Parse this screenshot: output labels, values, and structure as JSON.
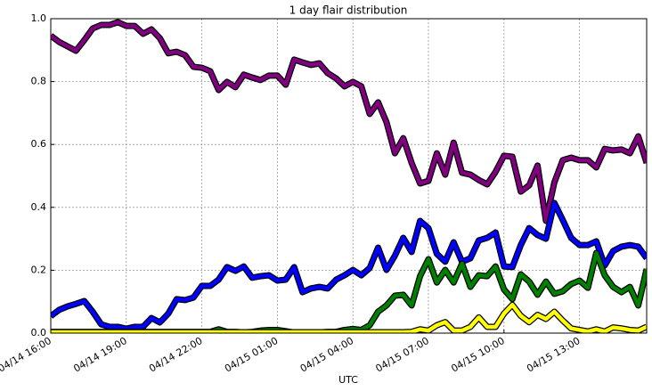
{
  "chart_data": {
    "type": "line",
    "title": "1 day flair distribution",
    "xlabel": "UTC",
    "x": [
      "04/14 16:00",
      "04/14 16:20",
      "04/14 16:40",
      "04/14 17:00",
      "04/14 17:20",
      "04/14 17:40",
      "04/14 18:00",
      "04/14 18:20",
      "04/14 18:40",
      "04/14 19:00",
      "04/14 19:20",
      "04/14 19:40",
      "04/14 20:00",
      "04/14 20:20",
      "04/14 20:40",
      "04/14 21:00",
      "04/14 21:20",
      "04/14 21:40",
      "04/14 22:00",
      "04/14 22:20",
      "04/14 22:40",
      "04/14 23:00",
      "04/14 23:20",
      "04/14 23:40",
      "04/15 00:00",
      "04/15 00:20",
      "04/15 00:40",
      "04/15 01:00",
      "04/15 01:20",
      "04/15 01:40",
      "04/15 02:00",
      "04/15 02:20",
      "04/15 02:40",
      "04/15 03:00",
      "04/15 03:20",
      "04/15 03:40",
      "04/15 04:00",
      "04/15 04:20",
      "04/15 04:40",
      "04/15 05:00",
      "04/15 05:20",
      "04/15 05:40",
      "04/15 06:00",
      "04/15 06:20",
      "04/15 06:40",
      "04/15 07:00",
      "04/15 07:20",
      "04/15 07:40",
      "04/15 08:00",
      "04/15 08:20",
      "04/15 08:40",
      "04/15 09:00",
      "04/15 09:20",
      "04/15 09:40",
      "04/15 10:00",
      "04/15 10:20",
      "04/15 10:40",
      "04/15 11:00",
      "04/15 11:20",
      "04/15 11:40",
      "04/15 12:00",
      "04/15 12:20",
      "04/15 12:40",
      "04/15 13:00",
      "04/15 13:20",
      "04/15 13:40",
      "04/15 14:00",
      "04/15 14:20",
      "04/15 14:40",
      "04/15 15:00",
      "04/15 15:20",
      "04/15 15:40"
    ],
    "series": [
      {
        "color": "#800080",
        "values": [
          0.946,
          0.926,
          0.912,
          0.898,
          0.932,
          0.969,
          0.98,
          0.98,
          0.989,
          0.977,
          0.977,
          0.952,
          0.966,
          0.938,
          0.89,
          0.895,
          0.884,
          0.847,
          0.844,
          0.833,
          0.773,
          0.799,
          0.782,
          0.822,
          0.813,
          0.805,
          0.819,
          0.819,
          0.79,
          0.87,
          0.861,
          0.853,
          0.858,
          0.827,
          0.81,
          0.785,
          0.799,
          0.785,
          0.697,
          0.734,
          0.671,
          0.572,
          0.62,
          0.541,
          0.476,
          0.484,
          0.572,
          0.504,
          0.606,
          0.51,
          0.504,
          0.487,
          0.473,
          0.513,
          0.564,
          0.561,
          0.45,
          0.47,
          0.533,
          0.357,
          0.479,
          0.55,
          0.558,
          0.55,
          0.55,
          0.527,
          0.586,
          0.581,
          0.584,
          0.572,
          0.626,
          0.541
        ]
      },
      {
        "color": "#0000ff",
        "values": [
          0.054,
          0.074,
          0.085,
          0.093,
          0.102,
          0.068,
          0.028,
          0.02,
          0.02,
          0.014,
          0.02,
          0.02,
          0.048,
          0.034,
          0.062,
          0.108,
          0.105,
          0.113,
          0.15,
          0.15,
          0.17,
          0.21,
          0.198,
          0.212,
          0.176,
          0.181,
          0.184,
          0.167,
          0.17,
          0.21,
          0.13,
          0.142,
          0.147,
          0.142,
          0.17,
          0.184,
          0.201,
          0.184,
          0.207,
          0.272,
          0.201,
          0.246,
          0.303,
          0.258,
          0.357,
          0.334,
          0.252,
          0.227,
          0.289,
          0.227,
          0.238,
          0.295,
          0.303,
          0.32,
          0.212,
          0.21,
          0.28,
          0.334,
          0.312,
          0.3,
          0.414,
          0.36,
          0.303,
          0.28,
          0.28,
          0.292,
          0.215,
          0.261,
          0.275,
          0.28,
          0.275,
          0.238
        ]
      },
      {
        "color": "#008000",
        "values": [
          0.004,
          0.004,
          0.004,
          0.004,
          0.004,
          0.004,
          0.004,
          0.004,
          0.004,
          0.004,
          0.004,
          0.004,
          0.004,
          0.004,
          0.004,
          0.004,
          0.004,
          0.004,
          0.004,
          0.004,
          0.012,
          0.004,
          0.004,
          0.002,
          0.004,
          0.008,
          0.01,
          0.01,
          0.006,
          0.002,
          0.002,
          0.003,
          0.002,
          0.004,
          0.004,
          0.01,
          0.013,
          0.01,
          0.025,
          0.068,
          0.088,
          0.119,
          0.122,
          0.088,
          0.181,
          0.235,
          0.161,
          0.201,
          0.161,
          0.221,
          0.147,
          0.184,
          0.181,
          0.212,
          0.139,
          0.108,
          0.187,
          0.164,
          0.122,
          0.164,
          0.125,
          0.133,
          0.156,
          0.167,
          0.144,
          0.255,
          0.184,
          0.147,
          0.13,
          0.147,
          0.088,
          0.204
        ]
      },
      {
        "color": "#ffff00",
        "values": [
          0.003,
          0.003,
          0.003,
          0.003,
          0.003,
          0.003,
          0.003,
          0.003,
          0.003,
          0.003,
          0.003,
          0.003,
          0.003,
          0.003,
          0.003,
          0.003,
          0.003,
          0.003,
          0.003,
          0.003,
          0.003,
          0.003,
          0.003,
          0.003,
          0.003,
          0.003,
          0.003,
          0.003,
          0.003,
          0.003,
          0.003,
          0.003,
          0.003,
          0.003,
          0.003,
          0.003,
          0.003,
          0.003,
          0.003,
          0.003,
          0.003,
          0.003,
          0.003,
          0.004,
          0.012,
          0.008,
          0.025,
          0.035,
          0.008,
          0.008,
          0.02,
          0.05,
          0.02,
          0.02,
          0.062,
          0.09,
          0.055,
          0.035,
          0.058,
          0.045,
          0.068,
          0.04,
          0.015,
          0.01,
          0.005,
          0.012,
          0.005,
          0.018,
          0.015,
          0.01,
          0.008,
          0.02
        ]
      }
    ],
    "xlim": [
      "04/14 16:00",
      "04/15 15:40"
    ],
    "xticks": [
      "04/14 16:00",
      "04/14 19:00",
      "04/14 22:00",
      "04/15 01:00",
      "04/15 04:00",
      "04/15 07:00",
      "04/15 10:00",
      "04/15 13:00"
    ],
    "ylim": [
      0,
      1
    ],
    "yticks": [
      {
        "value": 0,
        "label": "0.0"
      },
      {
        "value": 0.2,
        "label": "0.2"
      },
      {
        "value": 0.4,
        "label": "0.4"
      },
      {
        "value": 0.6,
        "label": "0.6"
      },
      {
        "value": 0.8,
        "label": "0.8"
      },
      {
        "value": 1,
        "label": "1.0"
      }
    ],
    "grid": true
  }
}
